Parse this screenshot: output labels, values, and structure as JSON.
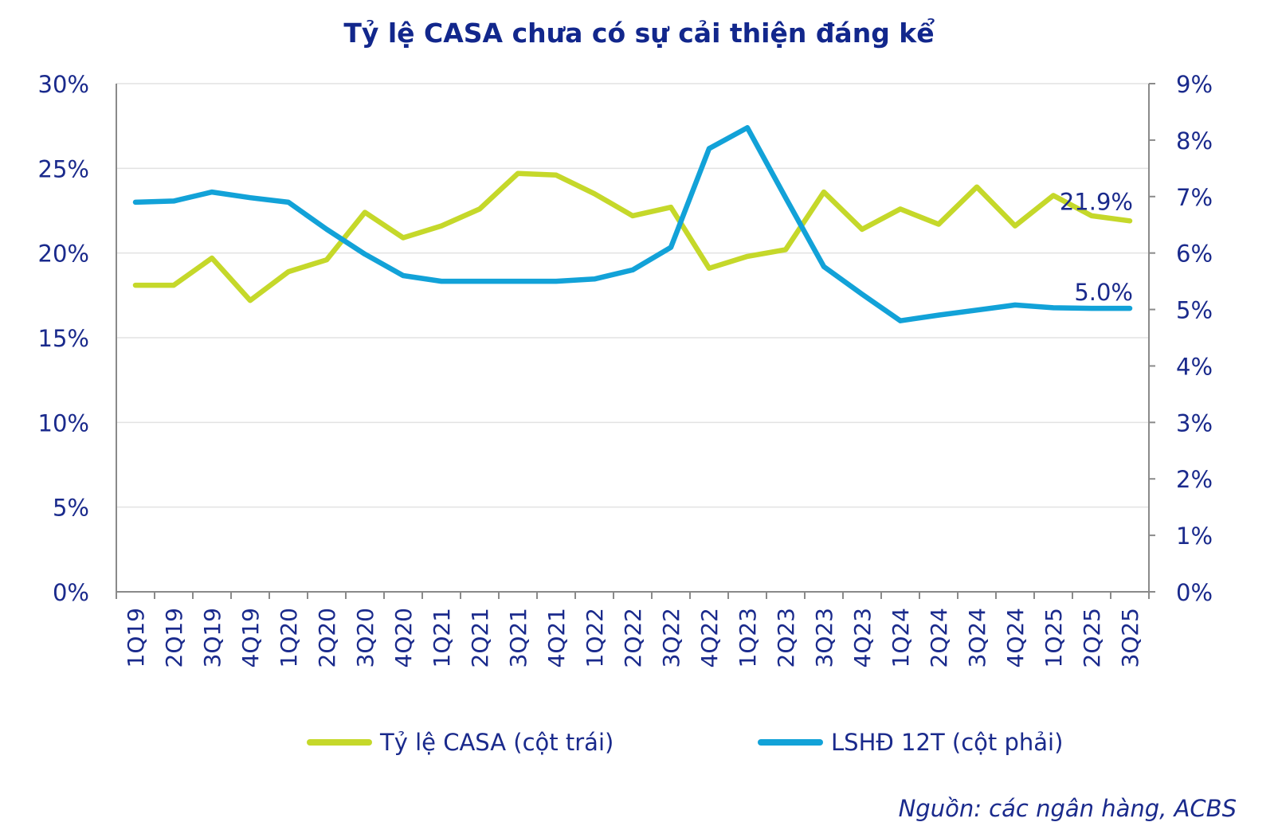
{
  "chart_data": {
    "type": "line",
    "title": "Tỷ lệ CASA chưa có sự cải thiện đáng kể",
    "categories": [
      "1Q19",
      "2Q19",
      "3Q19",
      "4Q19",
      "1Q20",
      "2Q20",
      "3Q20",
      "4Q20",
      "1Q21",
      "2Q21",
      "3Q21",
      "4Q21",
      "1Q22",
      "2Q22",
      "3Q22",
      "4Q22",
      "1Q23",
      "2Q23",
      "3Q23",
      "4Q23",
      "1Q24",
      "2Q24",
      "3Q24",
      "4Q24",
      "1Q25",
      "2Q25",
      "3Q25"
    ],
    "left_axis": {
      "min": 0,
      "max": 30,
      "ticks": [
        "0%",
        "5%",
        "10%",
        "15%",
        "20%",
        "25%",
        "30%"
      ]
    },
    "right_axis": {
      "min": 0,
      "max": 9,
      "ticks": [
        "0%",
        "1%",
        "2%",
        "3%",
        "4%",
        "5%",
        "6%",
        "7%",
        "8%",
        "9%"
      ]
    },
    "grid": true,
    "series": [
      {
        "name": "Tỷ lệ CASA (cột trái)",
        "axis": "left",
        "color": "#c5d82a",
        "values": [
          18.1,
          18.1,
          19.7,
          17.2,
          18.9,
          19.6,
          22.4,
          20.9,
          21.6,
          22.6,
          24.7,
          24.6,
          23.5,
          22.2,
          22.7,
          19.1,
          19.8,
          20.2,
          23.6,
          21.4,
          22.6,
          21.7,
          23.9,
          21.6,
          23.4,
          22.2,
          21.9
        ],
        "end_label": "21.9%"
      },
      {
        "name": "LSHĐ 12T (cột phải)",
        "axis": "right",
        "color": "#12a2d8",
        "values": [
          6.9,
          6.92,
          7.08,
          6.98,
          6.9,
          6.42,
          5.98,
          5.6,
          5.5,
          5.5,
          5.5,
          5.5,
          5.54,
          5.7,
          6.1,
          7.85,
          8.22,
          6.98,
          5.76,
          5.27,
          4.8,
          4.9,
          4.99,
          5.08,
          5.03,
          5.02,
          5.02
        ],
        "end_label": "5.0%"
      }
    ],
    "legend": "bottom",
    "source": "Nguồn:  các ngân hàng, ACBS"
  }
}
